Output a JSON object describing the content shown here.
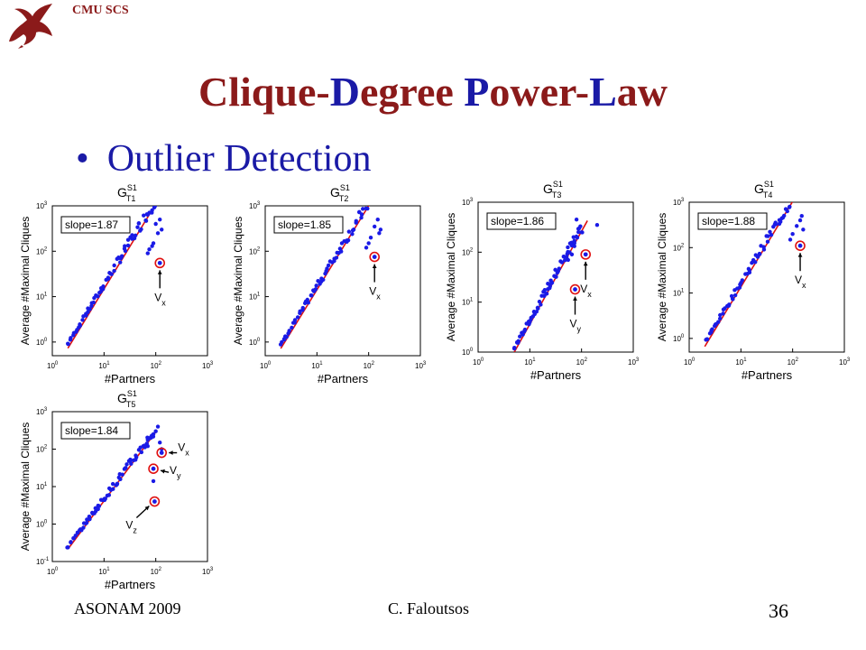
{
  "header": {
    "org": "CMU SCS",
    "title_parts": [
      {
        "text": "C",
        "color": "#8b1a1a"
      },
      {
        "text": "lique-",
        "color": "#8b1a1a"
      },
      {
        "text": "D",
        "color": "#1a1aa6"
      },
      {
        "text": "egree ",
        "color": "#8b1a1a"
      },
      {
        "text": "P",
        "color": "#1a1aa6"
      },
      {
        "text": "ower-",
        "color": "#8b1a1a"
      },
      {
        "text": "L",
        "color": "#1a1aa6"
      },
      {
        "text": "aw",
        "color": "#8b1a1a"
      }
    ]
  },
  "bullet": {
    "symbol": "•",
    "text": "Outlier Detection"
  },
  "footer": {
    "left": "ASONAM 2009",
    "center": "C. Faloutsos",
    "page": "36"
  },
  "colors": {
    "points": "#1a1ae6",
    "fit": "#e01010",
    "outlier": "#e01010",
    "title_red": "#8b1a1a",
    "title_blue": "#1a1aa6"
  },
  "chart_data": [
    {
      "type": "scatter",
      "title": {
        "base": "G",
        "sup": "S1",
        "sub": "T1"
      },
      "xlabel": "#Partners",
      "ylabel": "Average #Maximal Cliques",
      "xscale": "log",
      "yscale": "log",
      "xlim": [
        1,
        1000
      ],
      "ylim": [
        0.5,
        1000
      ],
      "xticks": [
        {
          "e": "0"
        },
        {
          "e": "1"
        },
        {
          "e": "2"
        },
        {
          "e": "3"
        }
      ],
      "yticks": [
        {
          "e": "0"
        },
        {
          "e": "1"
        },
        {
          "e": "2"
        },
        {
          "e": "3"
        }
      ],
      "legend": "slope=1.87",
      "slope": 1.87,
      "fit_x": [
        2,
        100
      ],
      "fit_y0": 0.2,
      "cloud": {
        "x_min": 2,
        "x_max": 110,
        "y0": 0.25,
        "slope": 1.87
      },
      "extras": [
        [
          100,
          400
        ],
        [
          120,
          500
        ],
        [
          90,
          150
        ],
        [
          110,
          250
        ],
        [
          85,
          130
        ],
        [
          130,
          300
        ],
        [
          75,
          110
        ],
        [
          70,
          90
        ]
      ],
      "outliers": [
        {
          "x": 120,
          "y": 55,
          "label": "V",
          "sub": "x"
        }
      ]
    },
    {
      "type": "scatter",
      "title": {
        "base": "G",
        "sup": "S1",
        "sub": "T2"
      },
      "xlabel": "#Partners",
      "ylabel": "Average #Maximal Cliques",
      "xscale": "log",
      "yscale": "log",
      "xlim": [
        1,
        1000
      ],
      "ylim": [
        0.5,
        1000
      ],
      "xticks": [
        {
          "e": "0"
        },
        {
          "e": "1"
        },
        {
          "e": "2"
        },
        {
          "e": "3"
        }
      ],
      "yticks": [
        {
          "e": "0"
        },
        {
          "e": "1"
        },
        {
          "e": "2"
        },
        {
          "e": "3"
        }
      ],
      "legend": "slope=1.85",
      "slope": 1.85,
      "fit_x": [
        2,
        150
      ],
      "fit_y0": 0.2,
      "cloud": {
        "x_min": 2,
        "x_max": 140,
        "y0": 0.24,
        "slope": 1.85
      },
      "extras": [
        [
          150,
          500
        ],
        [
          130,
          350
        ],
        [
          170,
          300
        ],
        [
          110,
          200
        ],
        [
          100,
          150
        ],
        [
          160,
          250
        ],
        [
          90,
          120
        ]
      ],
      "outliers": [
        {
          "x": 130,
          "y": 75,
          "label": "V",
          "sub": "x"
        }
      ]
    },
    {
      "type": "scatter",
      "title": {
        "base": "G",
        "sup": "S1",
        "sub": "T3"
      },
      "xlabel": "#Partners",
      "ylabel": "Average #Maximal Cliques",
      "xscale": "log",
      "yscale": "log",
      "xlim": [
        1,
        1000
      ],
      "ylim": [
        1,
        1000
      ],
      "xticks": [
        {
          "e": "0"
        },
        {
          "e": "1"
        },
        {
          "e": "2"
        },
        {
          "e": "3"
        }
      ],
      "yticks": [
        {
          "e": "0"
        },
        {
          "e": "1"
        },
        {
          "e": "2"
        },
        {
          "e": "3"
        }
      ],
      "legend": "slope=1.86",
      "slope": 1.86,
      "fit_x": [
        5,
        130
      ],
      "fit_y0": 0.05,
      "cloud": {
        "x_min": 5,
        "x_max": 100,
        "y0": 0.06,
        "slope": 1.86
      },
      "extras": [
        [
          80,
          450
        ],
        [
          90,
          300
        ],
        [
          70,
          200
        ],
        [
          60,
          150
        ],
        [
          100,
          250
        ],
        [
          200,
          350
        ],
        [
          65,
          90
        ],
        [
          55,
          70
        ]
      ],
      "outliers": [
        {
          "x": 120,
          "y": 90,
          "label": "V",
          "sub": "x"
        },
        {
          "x": 75,
          "y": 18,
          "label": "V",
          "sub": "y"
        }
      ]
    },
    {
      "type": "scatter",
      "title": {
        "base": "G",
        "sup": "S1",
        "sub": "T4"
      },
      "xlabel": "#Partners",
      "ylabel": "Average #Maximal Cliques",
      "xscale": "log",
      "yscale": "log",
      "xlim": [
        1,
        1000
      ],
      "ylim": [
        0.5,
        1000
      ],
      "xticks": [
        {
          "e": "0"
        },
        {
          "e": "1"
        },
        {
          "e": "2"
        },
        {
          "e": "3"
        }
      ],
      "yticks": [
        {
          "e": "0"
        },
        {
          "e": "1"
        },
        {
          "e": "2"
        },
        {
          "e": "3"
        }
      ],
      "legend": "slope=1.88",
      "slope": 1.88,
      "fit_x": [
        2,
        150
      ],
      "fit_y0": 0.18,
      "cloud": {
        "x_min": 2,
        "x_max": 140,
        "y0": 0.22,
        "slope": 1.88
      },
      "extras": [
        [
          150,
          500
        ],
        [
          140,
          400
        ],
        [
          120,
          300
        ],
        [
          100,
          200
        ],
        [
          90,
          150
        ],
        [
          160,
          250
        ]
      ],
      "outliers": [
        {
          "x": 140,
          "y": 110,
          "label": "V",
          "sub": "x"
        }
      ]
    },
    {
      "type": "scatter",
      "title": {
        "base": "G",
        "sup": "S1",
        "sub": "T5"
      },
      "xlabel": "#Partners",
      "ylabel": "Average #Maximal Cliques",
      "xscale": "log",
      "yscale": "log",
      "xlim": [
        1,
        1000
      ],
      "ylim": [
        0.1,
        1000
      ],
      "xticks": [
        {
          "e": "0"
        },
        {
          "e": "1"
        },
        {
          "e": "2"
        },
        {
          "e": "3"
        }
      ],
      "yticks": [
        {
          "e": "-1"
        },
        {
          "e": "0"
        },
        {
          "e": "1"
        },
        {
          "e": "2"
        },
        {
          "e": "3"
        }
      ],
      "legend": "slope=1.84",
      "slope": 1.84,
      "fit_x": [
        2,
        100
      ],
      "fit_y0": 0.06,
      "cloud": {
        "x_min": 2,
        "x_max": 90,
        "y0": 0.07,
        "slope": 1.84
      },
      "extras": [
        [
          110,
          400
        ],
        [
          100,
          300
        ],
        [
          90,
          250
        ],
        [
          80,
          200
        ],
        [
          120,
          150
        ],
        [
          70,
          120
        ],
        [
          130,
          100
        ],
        [
          90,
          14
        ]
      ],
      "outliers": [
        {
          "x": 130,
          "y": 80,
          "label": "V",
          "sub": "x"
        },
        {
          "x": 90,
          "y": 30,
          "label": "V",
          "sub": "y"
        },
        {
          "x": 95,
          "y": 4,
          "label": "V",
          "sub": "z"
        }
      ]
    }
  ]
}
